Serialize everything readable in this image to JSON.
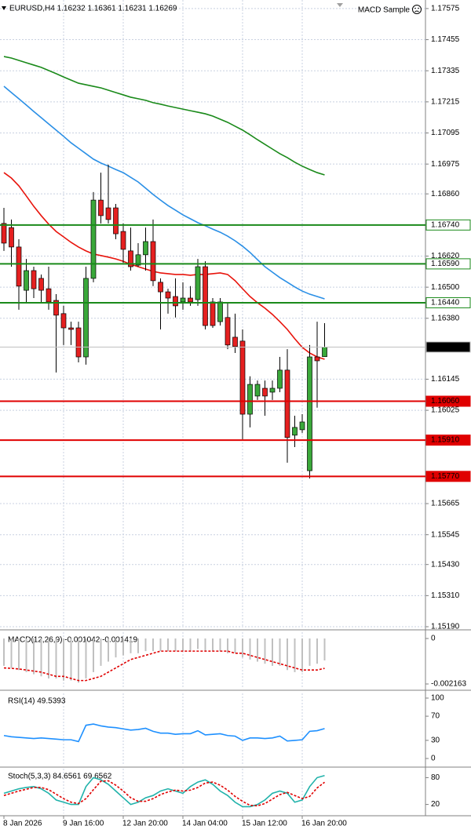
{
  "chart_data": [
    {
      "type": "candlestick",
      "title": "EURUSD,H4 1.16232 1.16361 1.16231 1.16269",
      "annotation": "MACD Sample",
      "categories": [
        "8 Jan 2026",
        null,
        null,
        null,
        null,
        null,
        null,
        null,
        "9 Jan 16:00",
        null,
        null,
        null,
        null,
        null,
        null,
        null,
        "12 Jan 20:00",
        null,
        null,
        null,
        null,
        null,
        null,
        null,
        "14 Jan 04:00",
        null,
        null,
        null,
        null,
        null,
        null,
        null,
        "15 Jan 12:00",
        null,
        null,
        null,
        null,
        null,
        null,
        null,
        "16 Jan 20:00",
        null,
        null,
        null
      ],
      "open": [
        1.16746,
        1.1673,
        1.16655,
        1.16488,
        1.16564,
        1.16534,
        1.16494,
        1.16449,
        1.16398,
        1.16343,
        1.16343,
        1.16231,
        1.16534,
        1.16836,
        1.16806,
        1.16806,
        1.16715,
        1.1664,
        1.16585,
        1.16625,
        1.16676,
        1.16519,
        1.16482,
        1.16464,
        1.16443,
        1.16458,
        1.16452,
        1.16579,
        1.16443,
        1.16367,
        1.16383,
        1.16307,
        1.16292,
        1.1601,
        1.1608,
        1.1611,
        1.16095,
        1.1611,
        1.1618,
        1.15929,
        1.1595,
        1.15792,
        1.16231,
        1.16232
      ],
      "high": [
        1.16806,
        1.16761,
        1.16685,
        1.16609,
        1.16579,
        1.16549,
        1.16579,
        1.16473,
        1.16428,
        1.16367,
        1.16367,
        1.16579,
        1.16867,
        1.16942,
        1.16973,
        1.16821,
        1.16746,
        1.1673,
        1.1667,
        1.1673,
        1.16761,
        1.16534,
        1.16494,
        1.16534,
        1.16519,
        1.16504,
        1.16609,
        1.166,
        1.16458,
        1.16458,
        1.16443,
        1.16398,
        1.16337,
        1.16156,
        1.1614,
        1.1614,
        1.1614,
        1.16231,
        1.16261,
        1.16004,
        1.1601,
        1.16277,
        1.16367,
        1.16361
      ],
      "low": [
        1.1664,
        1.16579,
        1.16413,
        1.16443,
        1.16458,
        1.16443,
        1.16413,
        1.16171,
        1.16277,
        1.16277,
        1.1621,
        1.16201,
        1.16519,
        1.16746,
        1.16746,
        1.16685,
        1.16594,
        1.16564,
        1.16579,
        1.16564,
        1.16504,
        1.16337,
        1.16398,
        1.16383,
        1.16413,
        1.16428,
        1.16428,
        1.16337,
        1.16343,
        1.16352,
        1.16261,
        1.16246,
        1.15913,
        1.15959,
        1.16065,
        1.16004,
        1.16065,
        1.16095,
        1.15823,
        1.15883,
        1.15938,
        1.15762,
        1.16035,
        1.16231
      ],
      "close": [
        1.1667,
        1.16655,
        1.16504,
        1.16564,
        1.16494,
        1.16488,
        1.16443,
        1.16392,
        1.16343,
        1.16337,
        1.16231,
        1.16534,
        1.16836,
        1.16776,
        1.16761,
        1.16706,
        1.16646,
        1.16579,
        1.16625,
        1.16676,
        1.16525,
        1.16482,
        1.16458,
        1.16428,
        1.16458,
        1.16443,
        1.16579,
        1.16352,
        1.16352,
        1.16443,
        1.16277,
        1.16271,
        1.1601,
        1.16125,
        1.16125,
        1.1608,
        1.1611,
        1.1618,
        1.1592,
        1.15959,
        1.1598,
        1.16231,
        1.16216,
        1.16269
      ],
      "up_color": "#3aa83a",
      "down_color": "#e52020",
      "lines": [
        {
          "color": "#e8140c",
          "values": [
            1.16942,
            1.16921,
            1.16891,
            1.16852,
            1.16812,
            1.16776,
            1.16743,
            1.16715,
            1.16694,
            1.16673,
            1.16655,
            1.1664,
            1.16628,
            1.16622,
            1.16616,
            1.16609,
            1.166,
            1.16588,
            1.16579,
            1.1657,
            1.16561,
            1.16555,
            1.16552,
            1.16549,
            1.16549,
            1.16546,
            1.16549,
            1.16549,
            1.16552,
            1.16555,
            1.16549,
            1.16525,
            1.16494,
            1.16464,
            1.1644,
            1.16419,
            1.16395,
            1.16367,
            1.16337,
            1.16301,
            1.16268,
            1.16246,
            1.16231,
            1.16222
          ]
        },
        {
          "color": "#2a8fe6",
          "values": [
            1.17275,
            1.17251,
            1.17227,
            1.17203,
            1.17178,
            1.17154,
            1.1713,
            1.17106,
            1.17082,
            1.17057,
            1.17036,
            1.17015,
            1.16994,
            1.16979,
            1.16967,
            1.16954,
            1.16942,
            1.16924,
            1.16906,
            1.16882,
            1.16858,
            1.16836,
            1.16815,
            1.16797,
            1.16779,
            1.16764,
            1.16749,
            1.16737,
            1.16724,
            1.16712,
            1.16697,
            1.16679,
            1.16658,
            1.16634,
            1.16606,
            1.16579,
            1.16558,
            1.16537,
            1.16519,
            1.16501,
            1.16485,
            1.16473,
            1.16464,
            1.16455
          ]
        },
        {
          "color": "#1a8a1a",
          "values": [
            1.1739,
            1.17384,
            1.17375,
            1.17366,
            1.17357,
            1.17348,
            1.17336,
            1.17324,
            1.17311,
            1.17299,
            1.17287,
            1.17281,
            1.17275,
            1.17269,
            1.1726,
            1.17251,
            1.17242,
            1.17233,
            1.17227,
            1.17221,
            1.17212,
            1.17206,
            1.17199,
            1.17193,
            1.17187,
            1.17181,
            1.17175,
            1.17169,
            1.1716,
            1.17148,
            1.17136,
            1.17121,
            1.17106,
            1.17088,
            1.17069,
            1.17051,
            1.17033,
            1.17015,
            1.17,
            1.16982,
            1.16967,
            1.16954,
            1.16942,
            1.16933
          ]
        }
      ],
      "levels": [
        {
          "value": 1.1674,
          "label": "1.16740",
          "color": "#1a8a1a",
          "label_fill": "#ffffff",
          "label_color": "#000000"
        },
        {
          "value": 1.1659,
          "label": "1.16590",
          "color": "#1a8a1a",
          "label_fill": "#ffffff",
          "label_color": "#000000"
        },
        {
          "value": 1.1644,
          "label": "1.16440",
          "color": "#1a8a1a",
          "label_fill": "#ffffff",
          "label_color": "#000000"
        },
        {
          "value": 1.16269,
          "color": "#c0c0c0",
          "label_fill": "#000000",
          "label_color": "#ffffff"
        },
        {
          "value": 1.1606,
          "label": "1.16060",
          "color": "#e00000",
          "label_fill": "#e00000",
          "label_color": "#ffffff"
        },
        {
          "value": 1.1591,
          "label": "1.15910",
          "color": "#e00000",
          "label_fill": "#e00000",
          "label_color": "#ffffff"
        },
        {
          "value": 1.1577,
          "label": "1.15770",
          "color": "#e00000",
          "label_fill": "#e00000",
          "label_color": "#ffffff"
        }
      ],
      "ylim": [
        1.15187,
        1.17608
      ],
      "yticks": [
        1.17575,
        1.17455,
        1.17335,
        1.17215,
        1.17095,
        1.16975,
        {
          "value": 1.1686,
          "label": "1.16860"
        },
        {
          "value": 1.1662,
          "label": "1.16620"
        },
        {
          "value": 1.165,
          "label": "1.16500"
        },
        {
          "value": 1.1638,
          "label": "1.16380"
        },
        1.16145,
        1.16025,
        1.15665,
        1.15545,
        {
          "value": 1.1543,
          "label": "1.15430"
        },
        {
          "value": 1.1531,
          "label": "1.15310"
        },
        {
          "value": 1.1519,
          "label": "1.15190"
        }
      ],
      "grid": true
    },
    {
      "type": "macd",
      "title": "MACD(12,26,9) -0.001042 -0.001419",
      "values": [
        -0.0013,
        -0.0014,
        -0.0015,
        -0.0016,
        -0.0017,
        -0.0018,
        -0.0019,
        -0.0019,
        -0.002,
        -0.002,
        -0.0021,
        -0.0019,
        -0.0016,
        -0.0013,
        -0.0011,
        -0.0009,
        -0.0008,
        -0.0007,
        -0.0007,
        -0.0006,
        -0.0006,
        -0.0006,
        -0.0006,
        -0.0006,
        -0.0006,
        -0.0006,
        -0.0005,
        -0.0006,
        -0.0006,
        -0.0006,
        -0.0007,
        -0.0007,
        -0.0009,
        -0.001,
        -0.0011,
        -0.0012,
        -0.0013,
        -0.0013,
        -0.0015,
        -0.0016,
        -0.0016,
        -0.0013,
        -0.0012,
        -0.001042
      ],
      "color": "#c0c0c0",
      "signal": [
        -0.0014,
        -0.00142,
        -0.00145,
        -0.0015,
        -0.00155,
        -0.0016,
        -0.0017,
        -0.0018,
        -0.0018,
        -0.0019,
        -0.002,
        -0.002,
        -0.0019,
        -0.0018,
        -0.0016,
        -0.0014,
        -0.0012,
        -0.001,
        -0.0009,
        -0.0008,
        -0.0007,
        -0.0006,
        -0.0006,
        -0.0006,
        -0.0006,
        -0.0006,
        -0.0006,
        -0.0006,
        -0.0006,
        -0.0006,
        -0.0006,
        -0.0007,
        -0.0007,
        -0.0008,
        -0.0009,
        -0.001,
        -0.0011,
        -0.0012,
        -0.0013,
        -0.0014,
        -0.0015,
        -0.0015,
        -0.0015,
        -0.001419
      ],
      "signal_color": "#e00000",
      "ylim": [
        -0.00235,
        0.0003
      ],
      "yticks": [
        0,
        -0.002163
      ]
    },
    {
      "type": "line",
      "title": "RSI(14) 49.5393",
      "values": [
        38,
        36,
        35,
        34,
        33,
        34,
        33,
        32,
        31,
        31,
        28,
        55,
        57,
        54,
        52,
        51,
        49,
        47,
        48,
        50,
        45,
        42,
        42,
        40,
        41,
        41,
        46,
        39,
        40,
        41,
        38,
        37,
        30,
        34,
        34,
        33,
        34,
        37,
        29,
        30,
        31,
        45,
        46,
        49.5393
      ],
      "color": "#1e90ff",
      "ylim": [
        -11.7,
        107.8
      ],
      "yticks": [
        100,
        70,
        30,
        0
      ]
    },
    {
      "type": "line",
      "title": "Stoch(5,3,3) 84.6561 69.6562",
      "series": [
        {
          "color": "#20b2aa",
          "dashed": false,
          "values": [
            45,
            50,
            55,
            58,
            60,
            55,
            45,
            30,
            25,
            20,
            20,
            60,
            80,
            75,
            65,
            50,
            35,
            20,
            25,
            35,
            40,
            50,
            55,
            50,
            45,
            60,
            70,
            75,
            65,
            50,
            40,
            25,
            15,
            15,
            20,
            30,
            45,
            50,
            45,
            25,
            30,
            60,
            80,
            84.6561
          ]
        },
        {
          "color": "#e00000",
          "dashed": true,
          "values": [
            40,
            45,
            50,
            54,
            58,
            58,
            53,
            43,
            33,
            25,
            22,
            33,
            53,
            72,
            73,
            63,
            50,
            35,
            27,
            27,
            33,
            42,
            48,
            52,
            50,
            52,
            58,
            68,
            70,
            63,
            52,
            38,
            27,
            18,
            17,
            22,
            32,
            42,
            47,
            40,
            33,
            38,
            57,
            69.6562
          ]
        }
      ],
      "ylim": [
        0,
        100
      ],
      "yticks": [
        80,
        20
      ]
    }
  ]
}
